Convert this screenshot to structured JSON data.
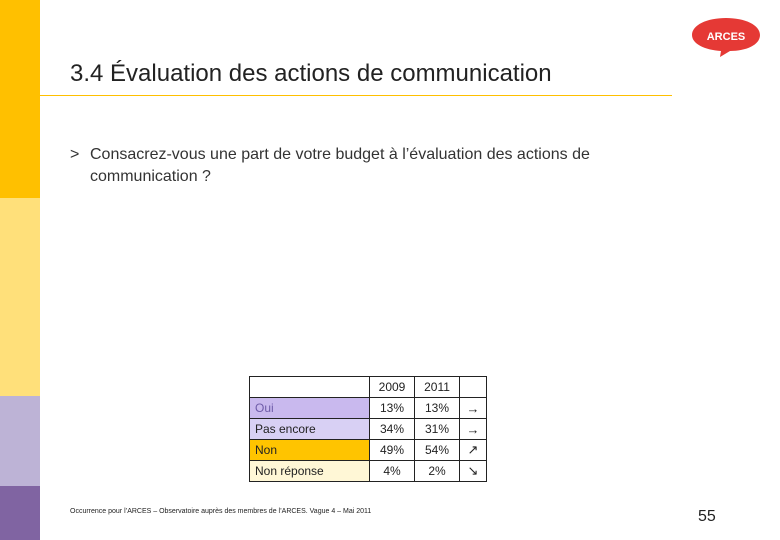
{
  "slide": {
    "title": "3.4 Évaluation des actions de communication",
    "logo_text": "ARCES",
    "question_marker": ">",
    "question": "Consacrez-vous une part de votre budget à l’évaluation des actions de communication ?",
    "source": "Occurrence pour l’ARCES – Observatoire auprès des membres de l’ARCES. Vague 4 – Mai 2011",
    "page_number": "55"
  },
  "table": {
    "columns": [
      "2009",
      "2011"
    ],
    "rows": [
      {
        "label": "Oui",
        "v2009": "13%",
        "v2011": "13%",
        "trend": "→",
        "trend_icon": "arrow-right-icon"
      },
      {
        "label": "Pas encore",
        "v2009": "34%",
        "v2011": "31%",
        "trend": "→",
        "trend_icon": "arrow-right-icon"
      },
      {
        "label": "Non",
        "v2009": "49%",
        "v2011": "54%",
        "trend": "↗",
        "trend_icon": "arrow-up-right-icon"
      },
      {
        "label": "Non réponse",
        "v2009": "4%",
        "v2011": "2%",
        "trend": "↘",
        "trend_icon": "arrow-down-right-icon"
      }
    ]
  },
  "colors": {
    "stripe": [
      "#FFC000",
      "#FFE07A",
      "#BDB3D6",
      "#8064A2"
    ],
    "logo": "#E53935",
    "row_oui": "#C9B9EE",
    "row_pas_encore": "#D8D0F4",
    "row_non": "#FFC400",
    "row_non_reponse": "#FFF7D6"
  }
}
